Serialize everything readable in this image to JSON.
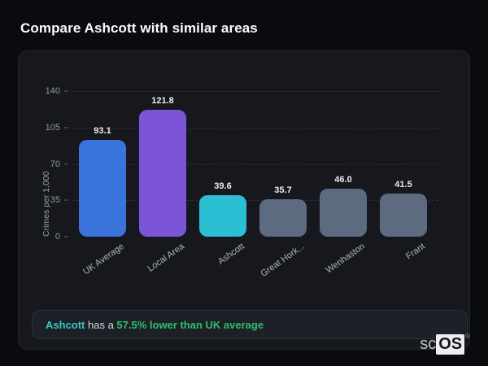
{
  "page": {
    "title": "Compare Ashcott with similar areas"
  },
  "chart_data": {
    "type": "bar",
    "categories": [
      "UK Average",
      "Local Area",
      "Ashcott",
      "Great Hork...",
      "Wenhaston",
      "Frant"
    ],
    "values": [
      93.1,
      121.8,
      39.6,
      35.7,
      46.0,
      41.5
    ],
    "value_labels": [
      "93.1",
      "121.8",
      "39.6",
      "35.7",
      "46.0",
      "41.5"
    ],
    "bar_colors": [
      "#3a73d9",
      "#7c54d8",
      "#2cbed2",
      "#5d6b80",
      "#5d6b80",
      "#5d6b80"
    ],
    "title": "",
    "xlabel": "",
    "ylabel": "Crimes per 1,000",
    "ylim": [
      0,
      140
    ],
    "yticks": [
      0,
      35,
      70,
      105,
      140
    ],
    "grid": "horizontal-dashed",
    "legend": "none"
  },
  "note": {
    "area": "Ashcott",
    "middle": " has a ",
    "highlight": "57.5% lower than UK average",
    "area_color": "#38c8c0",
    "highlight_color": "#2ebf70"
  },
  "logo": {
    "prefix": "sc",
    "suffix": "OS",
    "registered": "®"
  },
  "colors": {
    "page_background": "#0a0b0f",
    "card_background": "#16181d",
    "card_border": "#23262d",
    "note_background": "#1d2026",
    "gridline": "#2b2f36",
    "tick_text": "#8f95a0",
    "axis_label_text": "#9aa0a9",
    "category_text": "#aeb4bc",
    "value_text": "#e9ebee",
    "title_text": "#fafbfc"
  }
}
